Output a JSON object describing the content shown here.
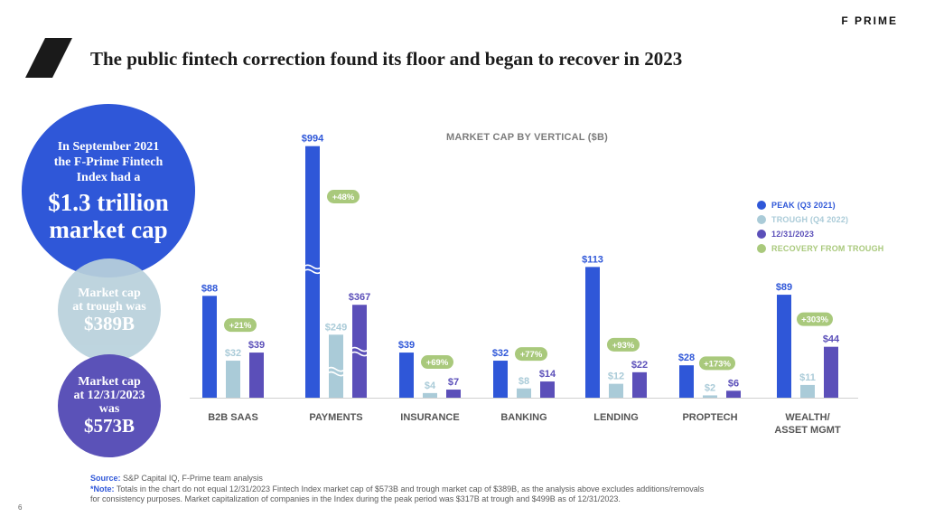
{
  "brand": "F PRIME",
  "title": "The public fintech correction found its floor and began to recover in 2023",
  "callouts": {
    "peak_lines": [
      "In September 2021",
      "the F-Prime Fintech",
      "Index had a"
    ],
    "peak_value": "$1.3 trillion",
    "peak_value2": "market cap",
    "trough_lines": [
      "Market cap",
      "at trough was"
    ],
    "trough_value": "$389B",
    "current_lines": [
      "Market cap",
      "at 12/31/2023",
      "was"
    ],
    "current_value": "$573B"
  },
  "colors": {
    "peak": "#2f57d8",
    "trough": "#aacbd8",
    "current": "#5b4fb9",
    "recovery": "#a9c97c",
    "axis": "#d0d0d0",
    "category_text": "#555555"
  },
  "chart_data": {
    "type": "bar",
    "title": "MARKET CAP BY VERTICAL ($B)",
    "categories": [
      "B2B SAAS",
      "PAYMENTS",
      "INSURANCE",
      "BANKING",
      "LENDING",
      "PROPTECH",
      "WEALTH/\nASSET MGMT"
    ],
    "series": [
      {
        "name": "PEAK (Q3 2021)",
        "values": [
          88,
          994,
          39,
          32,
          113,
          28,
          89
        ],
        "labels": [
          "$88",
          "$994",
          "$39",
          "$32",
          "$113",
          "$28",
          "$89"
        ]
      },
      {
        "name": "TROUGH (Q4 2022)",
        "values": [
          32,
          249,
          4,
          8,
          12,
          2,
          11
        ],
        "labels": [
          "$32",
          "$249",
          "$4",
          "$8",
          "$12",
          "$2",
          "$11"
        ]
      },
      {
        "name": "12/31/2023",
        "values": [
          39,
          367,
          7,
          14,
          22,
          6,
          44
        ],
        "labels": [
          "$39",
          "$367",
          "$7",
          "$14",
          "$22",
          "$6",
          "$44"
        ]
      }
    ],
    "recovery": [
      "+21%",
      "+48%",
      "+69%",
      "+77%",
      "+93%",
      "+173%",
      "+303%"
    ],
    "recovery_legend": "RECOVERY FROM TROUGH",
    "axis_break": "PAYMENTS"
  },
  "footer": {
    "source_label": "Source:",
    "source_text": " S&P Capital IQ, F-Prime team analysis",
    "note_label": "*Note:",
    "note_text": " Totals in the chart do not equal 12/31/2023 Fintech Index market cap of $573B and trough market cap of $389B, as the analysis above excludes additions/removals",
    "note_text2": "for consistency purposes. Market capitalization of companies in the Index during the peak period was $317B at trough and $499B as of 12/31/2023."
  },
  "page_number": "6"
}
